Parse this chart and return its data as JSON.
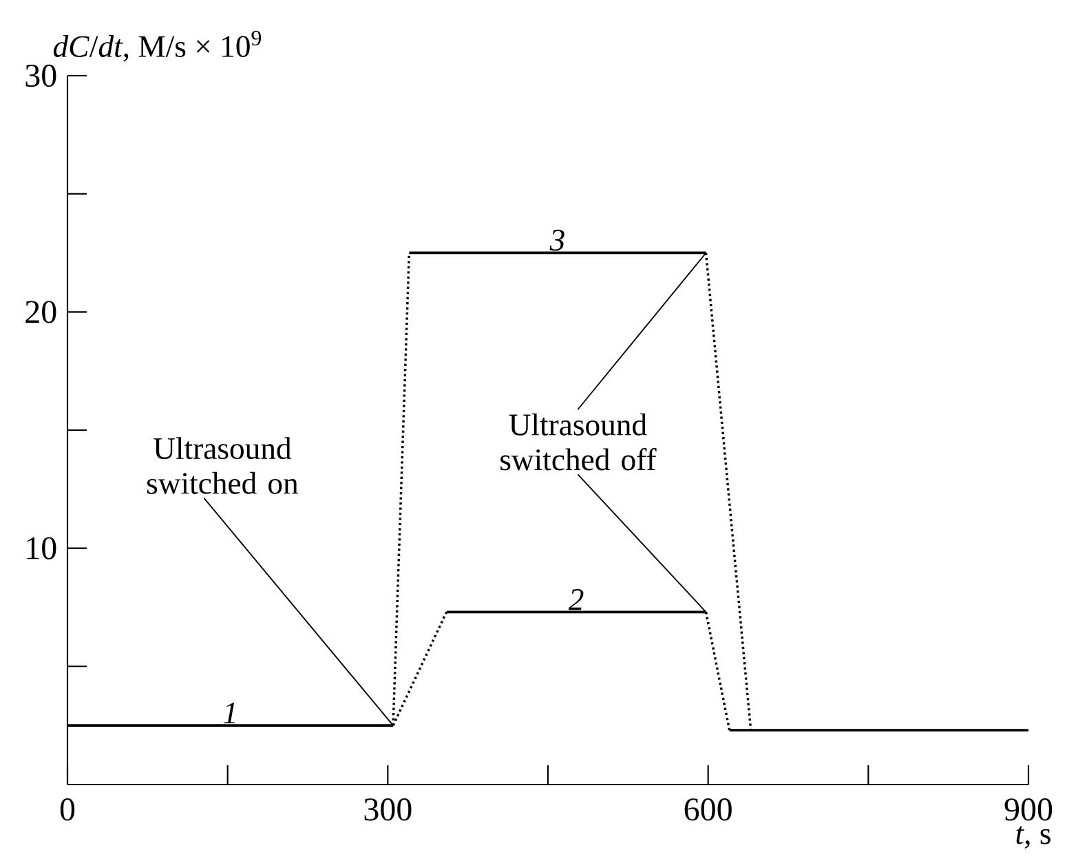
{
  "chart_data": {
    "type": "line",
    "xlabel": "*t*, s",
    "ylabel": "*dC*/*dt*, M/s × 10$^{9}$",
    "xlim": [
      0,
      900
    ],
    "ylim": [
      0,
      30
    ],
    "xticks": [
      0,
      {
        "value": 150,
        "label": null
      },
      300,
      {
        "value": 450,
        "label": null
      },
      600,
      {
        "value": 750,
        "label": null
      },
      900
    ],
    "yticks": [
      {
        "value": 5,
        "label": null
      },
      10,
      {
        "value": 15,
        "label": null
      },
      20,
      {
        "value": 25,
        "label": null
      },
      30
    ],
    "series": [
      {
        "name": "1",
        "color": "#000000",
        "line_style": "solid",
        "x": [
          0,
          305
        ],
        "values": [
          2.5,
          2.5
        ]
      },
      {
        "name": "2",
        "color": "#000000",
        "line_style": "solid",
        "x": [
          355,
          598
        ],
        "values": [
          7.3,
          7.3
        ]
      },
      {
        "name": "3",
        "color": "#000000",
        "line_style": "solid",
        "x": [
          320,
          598
        ],
        "values": [
          22.5,
          22.5
        ]
      },
      {
        "color": "#000000",
        "line_style": "dotted",
        "x": [
          305,
          355
        ],
        "values": [
          2.5,
          7.3
        ]
      },
      {
        "color": "#000000",
        "line_style": "dotted",
        "x": [
          598,
          620
        ],
        "values": [
          7.3,
          2.3
        ]
      },
      {
        "color": "#000000",
        "line_style": "dotted",
        "x": [
          305,
          320
        ],
        "values": [
          2.5,
          22.5
        ]
      },
      {
        "color": "#000000",
        "line_style": "dotted",
        "x": [
          598,
          640
        ],
        "values": [
          22.5,
          2.3
        ]
      },
      {
        "color": "#000000",
        "line_style": "solid",
        "x": [
          620,
          900
        ],
        "values": [
          2.3,
          2.3
        ]
      }
    ],
    "annotations": [
      {
        "text": "Ultrasound switched on",
        "x": 305,
        "y": 2.5
      },
      {
        "text": "Ultrasound switched off",
        "x": 598,
        "y": 22.5
      }
    ]
  }
}
